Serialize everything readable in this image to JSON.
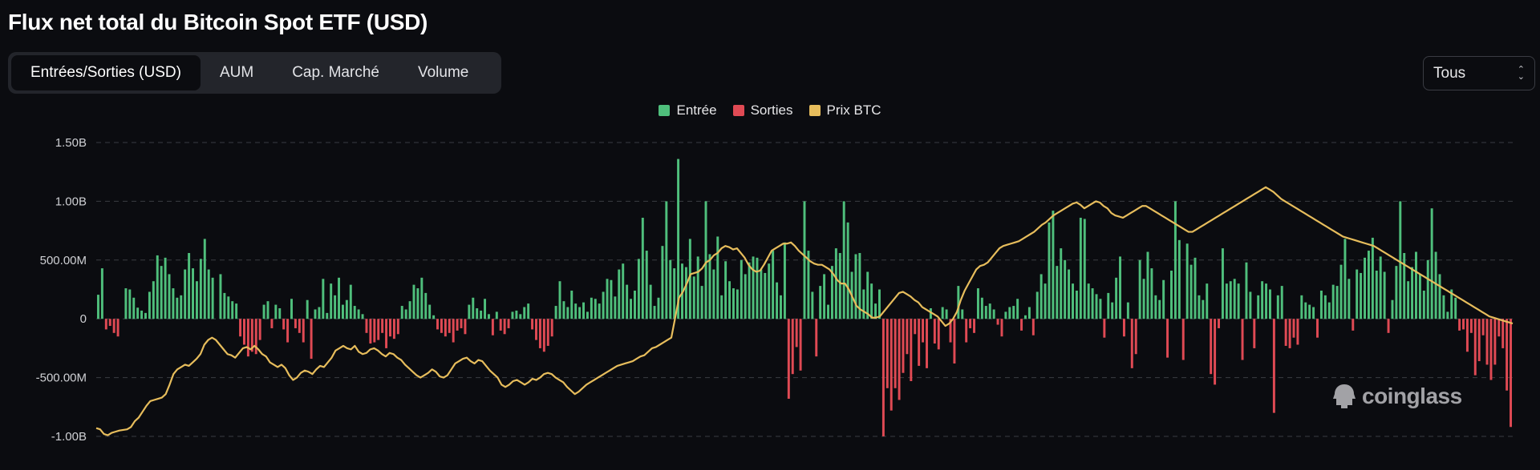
{
  "header": {
    "title": "Flux net total du Bitcoin Spot ETF (USD)"
  },
  "tabs": [
    {
      "label": "Entrées/Sorties (USD)",
      "active": true
    },
    {
      "label": "AUM",
      "active": false
    },
    {
      "label": "Cap. Marché",
      "active": false
    },
    {
      "label": "Volume",
      "active": false
    }
  ],
  "range_select": {
    "value": "Tous"
  },
  "watermark": {
    "text": "coinglass"
  },
  "colors": {
    "inflow": "#4fbf7c",
    "outflow": "#e04a54",
    "price": "#e7bd5c",
    "grid": "#3a3c42"
  },
  "chart_data": {
    "type": "bar",
    "legend": [
      {
        "name": "Entrée",
        "color": "#4fbf7c"
      },
      {
        "name": "Sorties",
        "color": "#e04a54"
      },
      {
        "name": "Prix BTC",
        "color": "#e7bd5c"
      }
    ],
    "legend_position": "top-center",
    "y_ticks": [
      "1.50B",
      "1.00B",
      "500.00M",
      "0",
      "-500.00M",
      "-1.00B"
    ],
    "y_tick_values": [
      1500,
      1000,
      500,
      0,
      -500,
      -1000
    ],
    "ylim": [
      -1000,
      1500
    ],
    "y_unit": "M USD",
    "grid": true,
    "series": [
      {
        "name": "Flux net",
        "kind": "bar",
        "values": [
          205,
          430,
          -90,
          -60,
          -120,
          -150,
          0,
          260,
          250,
          180,
          95,
          70,
          50,
          230,
          320,
          540,
          450,
          520,
          380,
          260,
          180,
          200,
          420,
          560,
          430,
          320,
          510,
          680,
          420,
          350,
          0,
          380,
          220,
          190,
          150,
          130,
          -150,
          -220,
          -320,
          -280,
          -300,
          -180,
          120,
          150,
          -80,
          120,
          90,
          -90,
          -200,
          170,
          -80,
          -120,
          -200,
          160,
          -340,
          80,
          100,
          340,
          50,
          300,
          200,
          350,
          120,
          160,
          290,
          110,
          80,
          40,
          -120,
          -210,
          -200,
          -180,
          -120,
          -250,
          -150,
          -170,
          -130,
          110,
          80,
          150,
          290,
          260,
          350,
          220,
          120,
          30,
          -90,
          -120,
          -150,
          -120,
          -200,
          -100,
          -80,
          -130,
          120,
          180,
          90,
          70,
          170,
          40,
          -140,
          60,
          -100,
          -130,
          -80,
          60,
          70,
          40,
          100,
          130,
          -90,
          -180,
          -250,
          -280,
          -230,
          -150,
          110,
          320,
          150,
          100,
          240,
          130,
          100,
          140,
          60,
          180,
          170,
          130,
          230,
          340,
          330,
          190,
          420,
          470,
          290,
          170,
          240,
          510,
          860,
          580,
          290,
          110,
          180,
          620,
          1000,
          500,
          430,
          1360,
          470,
          440,
          680,
          360,
          530,
          280,
          1000,
          550,
          420,
          700,
          200,
          490,
          320,
          260,
          250,
          500,
          380,
          480,
          530,
          520,
          420,
          390,
          470,
          580,
          310,
          200,
          650,
          -680,
          -470,
          -240,
          -440,
          1000,
          580,
          230,
          -320,
          280,
          380,
          120,
          450,
          600,
          560,
          1000,
          820,
          400,
          550,
          560,
          250,
          400,
          300,
          130,
          250,
          -1000,
          -590,
          -780,
          -590,
          -690,
          -460,
          -300,
          -530,
          -130,
          -400,
          -200,
          -420,
          90,
          -210,
          -260,
          100,
          80,
          -200,
          -380,
          280,
          80,
          -200,
          -80,
          -120,
          260,
          180,
          110,
          130,
          80,
          -50,
          -150,
          60,
          100,
          110,
          170,
          -100,
          30,
          100,
          -140,
          230,
          380,
          300,
          820,
          920,
          450,
          600,
          500,
          420,
          300,
          240,
          860,
          850,
          300,
          260,
          210,
          170,
          -160,
          220,
          140,
          350,
          530,
          -150,
          140,
          -420,
          -300,
          500,
          340,
          570,
          430,
          200,
          160,
          330,
          -330,
          410,
          1000,
          670,
          -350,
          640,
          460,
          520,
          200,
          160,
          300,
          -470,
          -560,
          -80,
          600,
          300,
          320,
          340,
          300,
          -350,
          480,
          230,
          -250,
          200,
          320,
          300,
          250,
          -800,
          200,
          280,
          -230,
          -250,
          -160,
          -220,
          200,
          140,
          120,
          100,
          -160,
          240,
          200,
          140,
          290,
          280,
          460,
          680,
          340,
          -100,
          420,
          390,
          520,
          580,
          690,
          410,
          530,
          400,
          -120,
          160,
          450,
          1000,
          560,
          320,
          440,
          570,
          380,
          240,
          500,
          940,
          570,
          380,
          200,
          60,
          250,
          180,
          -100,
          -90,
          -280,
          -120,
          -480,
          -360,
          -140,
          -390,
          -520,
          -390,
          -150,
          -250,
          -610,
          -920
        ]
      },
      {
        "name": "Prix BTC",
        "kind": "line",
        "axis": "secondary",
        "values": [
          -930,
          -940,
          -980,
          -990,
          -970,
          -960,
          -950,
          -945,
          -940,
          -920,
          -870,
          -840,
          -790,
          -740,
          -700,
          -690,
          -680,
          -670,
          -640,
          -560,
          -470,
          -430,
          -410,
          -390,
          -400,
          -370,
          -340,
          -300,
          -220,
          -180,
          -160,
          -180,
          -220,
          -260,
          -300,
          -310,
          -330,
          -290,
          -250,
          -240,
          -260,
          -230,
          -260,
          -300,
          -320,
          -370,
          -390,
          -410,
          -390,
          -420,
          -480,
          -520,
          -500,
          -460,
          -440,
          -450,
          -470,
          -430,
          -400,
          -410,
          -370,
          -330,
          -270,
          -250,
          -230,
          -250,
          -260,
          -230,
          -280,
          -300,
          -290,
          -260,
          -250,
          -270,
          -300,
          -320,
          -290,
          -300,
          -330,
          -350,
          -390,
          -420,
          -450,
          -480,
          -500,
          -480,
          -460,
          -430,
          -450,
          -490,
          -500,
          -480,
          -430,
          -380,
          -360,
          -340,
          -330,
          -360,
          -380,
          -350,
          -360,
          -400,
          -440,
          -470,
          -500,
          -560,
          -580,
          -560,
          -530,
          -520,
          -540,
          -560,
          -540,
          -510,
          -520,
          -500,
          -470,
          -460,
          -470,
          -500,
          -520,
          -540,
          -580,
          -610,
          -640,
          -620,
          -590,
          -560,
          -540,
          -520,
          -500,
          -480,
          -460,
          -440,
          -420,
          -400,
          -390,
          -380,
          -370,
          -360,
          -340,
          -320,
          -310,
          -280,
          -250,
          -240,
          -220,
          -200,
          -180,
          -160,
          10,
          180,
          230,
          300,
          380,
          390,
          400,
          430,
          480,
          500,
          540,
          560,
          600,
          620,
          610,
          590,
          600,
          560,
          520,
          460,
          420,
          400,
          410,
          460,
          520,
          580,
          600,
          620,
          640,
          640,
          650,
          620,
          580,
          550,
          520,
          490,
          470,
          460,
          460,
          440,
          420,
          380,
          330,
          300,
          300,
          250,
          180,
          110,
          80,
          60,
          40,
          10,
          10,
          20,
          60,
          100,
          140,
          180,
          220,
          230,
          210,
          190,
          160,
          140,
          100,
          80,
          60,
          40,
          20,
          -20,
          -60,
          -40,
          0,
          60,
          160,
          240,
          300,
          360,
          420,
          450,
          460,
          480,
          520,
          560,
          600,
          620,
          630,
          640,
          650,
          660,
          680,
          700,
          720,
          740,
          770,
          800,
          820,
          850,
          880,
          900,
          920,
          940,
          960,
          980,
          990,
          970,
          940,
          960,
          980,
          1000,
          990,
          960,
          940,
          900,
          880,
          870,
          860,
          880,
          900,
          920,
          940,
          960,
          960,
          940,
          920,
          900,
          880,
          860,
          840,
          820,
          800,
          780,
          760,
          740,
          740,
          760,
          780,
          800,
          820,
          840,
          860,
          880,
          900,
          920,
          940,
          960,
          980,
          1000,
          1020,
          1040,
          1060,
          1080,
          1100,
          1120,
          1100,
          1080,
          1050,
          1020,
          1000,
          980,
          960,
          940,
          920,
          900,
          880,
          860,
          840,
          820,
          800,
          780,
          760,
          740,
          720,
          700,
          690,
          680,
          670,
          660,
          650,
          640,
          630,
          620,
          600,
          580,
          560,
          540,
          520,
          500,
          480,
          460,
          440,
          420,
          400,
          380,
          360,
          340,
          320,
          300,
          280,
          260,
          240,
          220,
          200,
          180,
          160,
          140,
          120,
          100,
          80,
          60,
          40,
          20,
          10,
          0,
          -10,
          -20,
          -30,
          -40
        ]
      }
    ]
  }
}
